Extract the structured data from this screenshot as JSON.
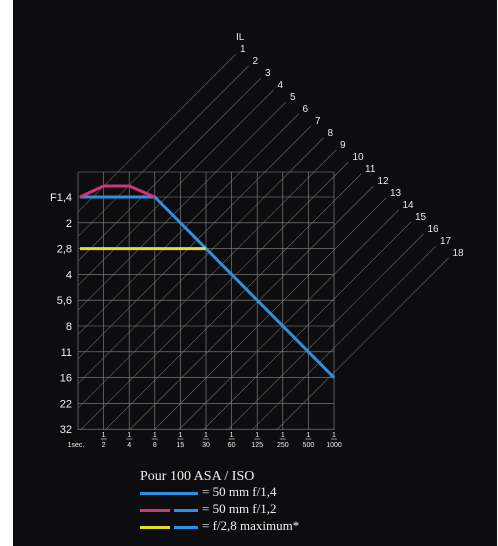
{
  "chart_data": {
    "type": "line",
    "title": "",
    "xlabel": "",
    "ylabel": "",
    "ev_label": "IL",
    "ev_values": [
      "1",
      "2",
      "3",
      "4",
      "5",
      "6",
      "7",
      "8",
      "9",
      "10",
      "11",
      "12",
      "13",
      "14",
      "15",
      "16",
      "17",
      "18"
    ],
    "x_ticks": [
      {
        "num": "",
        "den": "1sec."
      },
      {
        "num": "1",
        "den": "2"
      },
      {
        "num": "1",
        "den": "4"
      },
      {
        "num": "1",
        "den": "8"
      },
      {
        "num": "1",
        "den": "15"
      },
      {
        "num": "1",
        "den": "30"
      },
      {
        "num": "1",
        "den": "60"
      },
      {
        "num": "1",
        "den": "125"
      },
      {
        "num": "1",
        "den": "250"
      },
      {
        "num": "1",
        "den": "500"
      },
      {
        "num": "1",
        "den": "1000"
      }
    ],
    "y_ticks": [
      "F1,4",
      "2",
      "2,8",
      "4",
      "5,6",
      "8",
      "11",
      "16",
      "22",
      "32"
    ],
    "series": [
      {
        "name": "= 50 mm f/1,4",
        "color": "#2f8fe0",
        "points": [
          [
            "1sec.",
            "1,4"
          ],
          [
            "1/8",
            "1,4"
          ],
          [
            "1/1000",
            "16"
          ]
        ]
      },
      {
        "name": "= 50 mm f/1,2",
        "color": "#d0337c",
        "points": [
          [
            "1sec.",
            "1,4"
          ],
          [
            "1/2",
            "1,2"
          ],
          [
            "1/4",
            "1,2"
          ],
          [
            "1/8",
            "1,4"
          ]
        ]
      },
      {
        "name": "= f/2,8 maximum*",
        "color": "#e6dc2a",
        "points": [
          [
            "1sec.",
            "2,8"
          ],
          [
            "1/30",
            "2,8"
          ]
        ]
      }
    ],
    "legend": {
      "title": "Pour 100 ASA / ISO",
      "entries": [
        {
          "label": "= 50 mm f/1,4",
          "colors": [
            "#2f8fe0"
          ]
        },
        {
          "label": "= 50 mm f/1,2",
          "colors": [
            "#d0337c",
            "#2f8fe0"
          ]
        },
        {
          "label": "= f/2,8 maximum*",
          "colors": [
            "#e6dc2a",
            "#2f8fe0"
          ]
        }
      ]
    },
    "grid": true
  }
}
